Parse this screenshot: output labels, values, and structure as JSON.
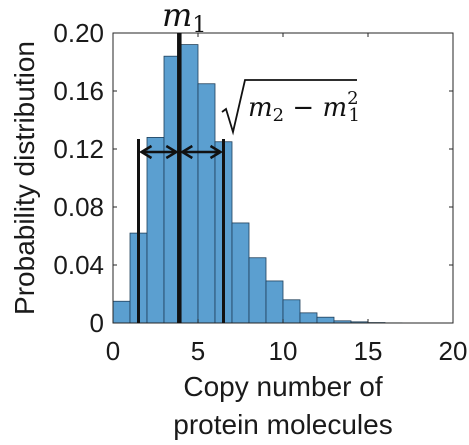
{
  "chart_data": {
    "type": "bar",
    "x_label_lines": [
      "Copy number of",
      "protein molecules"
    ],
    "y_label": "Probability distribution",
    "x_ticks": [
      0,
      5,
      10,
      15,
      20
    ],
    "y_ticks": [
      "0",
      "0.04",
      "0.08",
      "0.12",
      "0.16",
      "0.20"
    ],
    "y_tick_values": [
      0,
      0.04,
      0.08,
      0.12,
      0.16,
      0.2
    ],
    "xlim": [
      0,
      20
    ],
    "ylim": [
      0,
      0.2
    ],
    "bin_width": 1,
    "bins": [
      0,
      1,
      2,
      3,
      4,
      5,
      6,
      7,
      8,
      9,
      10,
      11,
      12,
      13,
      14,
      15,
      16,
      17,
      18,
      19
    ],
    "values": [
      0.015,
      0.062,
      0.128,
      0.184,
      0.192,
      0.165,
      0.125,
      0.069,
      0.045,
      0.029,
      0.016,
      0.007,
      0.004,
      0.0015,
      0.0008,
      0.0003,
      0.0001,
      0.0,
      0.0,
      0.0
    ],
    "bar_color": "#5b9fd0",
    "bar_edge_color": "#1f3f5a",
    "annotations": {
      "mean_label_base": "m",
      "mean_label_sub": "1",
      "mean_value": 3.9,
      "lower_line": 1.5,
      "upper_line": 6.5,
      "sqrt_label_m2_base": "m",
      "sqrt_label_m2_sub": "2",
      "sqrt_label_minus": "−",
      "sqrt_label_m1_base": "m",
      "sqrt_label_m1_sub": "1",
      "sqrt_label_m1_sup": "2"
    }
  }
}
